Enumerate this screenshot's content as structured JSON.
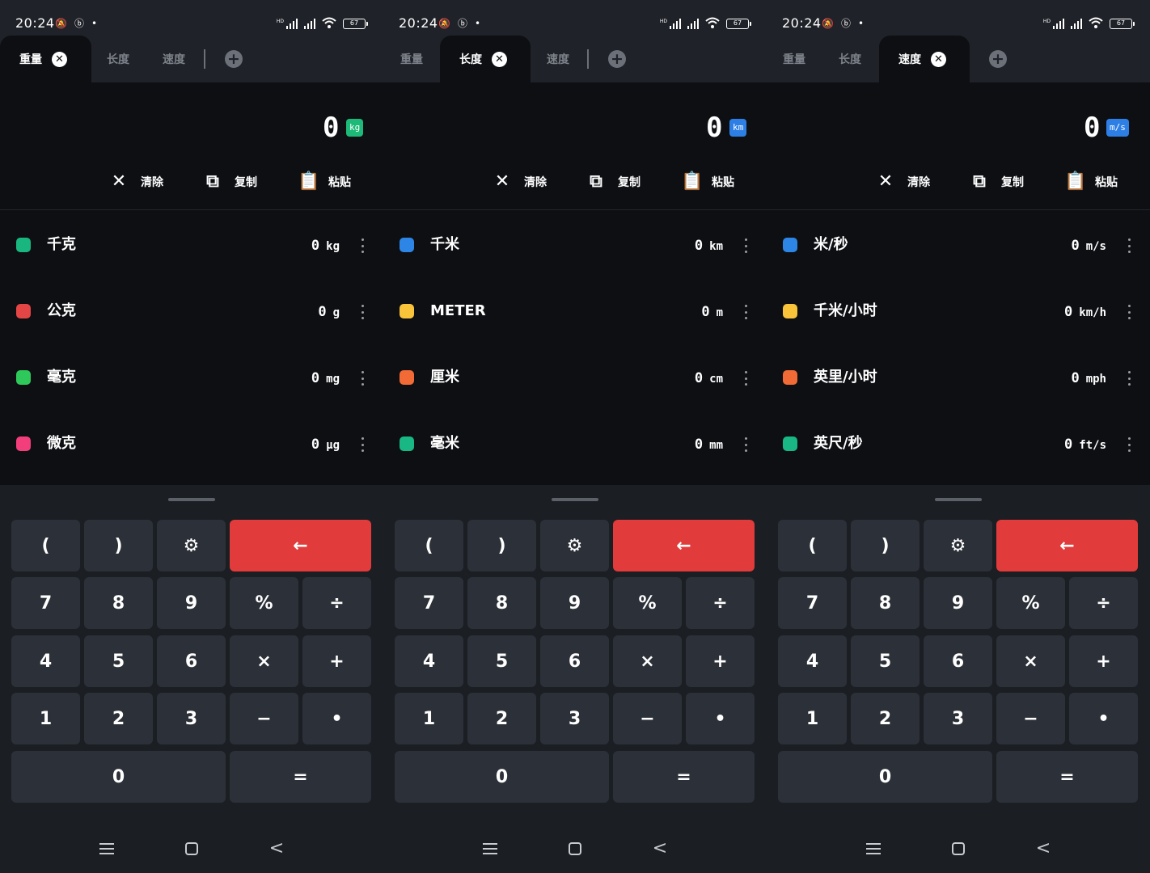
{
  "status_bar": {
    "time": "20:24",
    "battery": "67"
  },
  "tabs": [
    "重量",
    "长度",
    "速度"
  ],
  "actions": {
    "clear": "清除",
    "copy": "复制",
    "paste": "粘贴"
  },
  "keypad": {
    "keys": [
      "(",
      ")",
      "gear-icon",
      "←",
      "7",
      "8",
      "9",
      "%",
      "÷",
      "4",
      "5",
      "6",
      "×",
      "+",
      "1",
      "2",
      "3",
      "−",
      "•",
      "0",
      "="
    ]
  },
  "screens": [
    {
      "active_tab": 0,
      "display": {
        "value": "0",
        "unit": "kg",
        "badge_color": "#1db978"
      },
      "units": [
        {
          "name": "千克",
          "value": "0",
          "unit": "kg",
          "color": "#19b77f"
        },
        {
          "name": "公克",
          "value": "0",
          "unit": "g",
          "color": "#e44545"
        },
        {
          "name": "毫克",
          "value": "0",
          "unit": "mg",
          "color": "#2ec95a"
        },
        {
          "name": "微克",
          "value": "0",
          "unit": "μg",
          "color": "#f23f7c"
        }
      ]
    },
    {
      "active_tab": 1,
      "display": {
        "value": "0",
        "unit": "km",
        "badge_color": "#2d7fe6"
      },
      "units": [
        {
          "name": "千米",
          "value": "0",
          "unit": "km",
          "color": "#2d86e6"
        },
        {
          "name": "METER",
          "value": "0",
          "unit": "m",
          "color": "#f9c33a"
        },
        {
          "name": "厘米",
          "value": "0",
          "unit": "cm",
          "color": "#f26a35"
        },
        {
          "name": "毫米",
          "value": "0",
          "unit": "mm",
          "color": "#18b784"
        }
      ]
    },
    {
      "active_tab": 2,
      "display": {
        "value": "0",
        "unit": "m/s",
        "badge_color": "#2d7fe6"
      },
      "units": [
        {
          "name": "米/秒",
          "value": "0",
          "unit": "m/s",
          "color": "#2d86e6"
        },
        {
          "name": "千米/小时",
          "value": "0",
          "unit": "km/h",
          "color": "#f9c33a"
        },
        {
          "name": "英里/小时",
          "value": "0",
          "unit": "mph",
          "color": "#f26a35"
        },
        {
          "name": "英尺/秒",
          "value": "0",
          "unit": "ft/s",
          "color": "#18b784"
        }
      ]
    }
  ]
}
